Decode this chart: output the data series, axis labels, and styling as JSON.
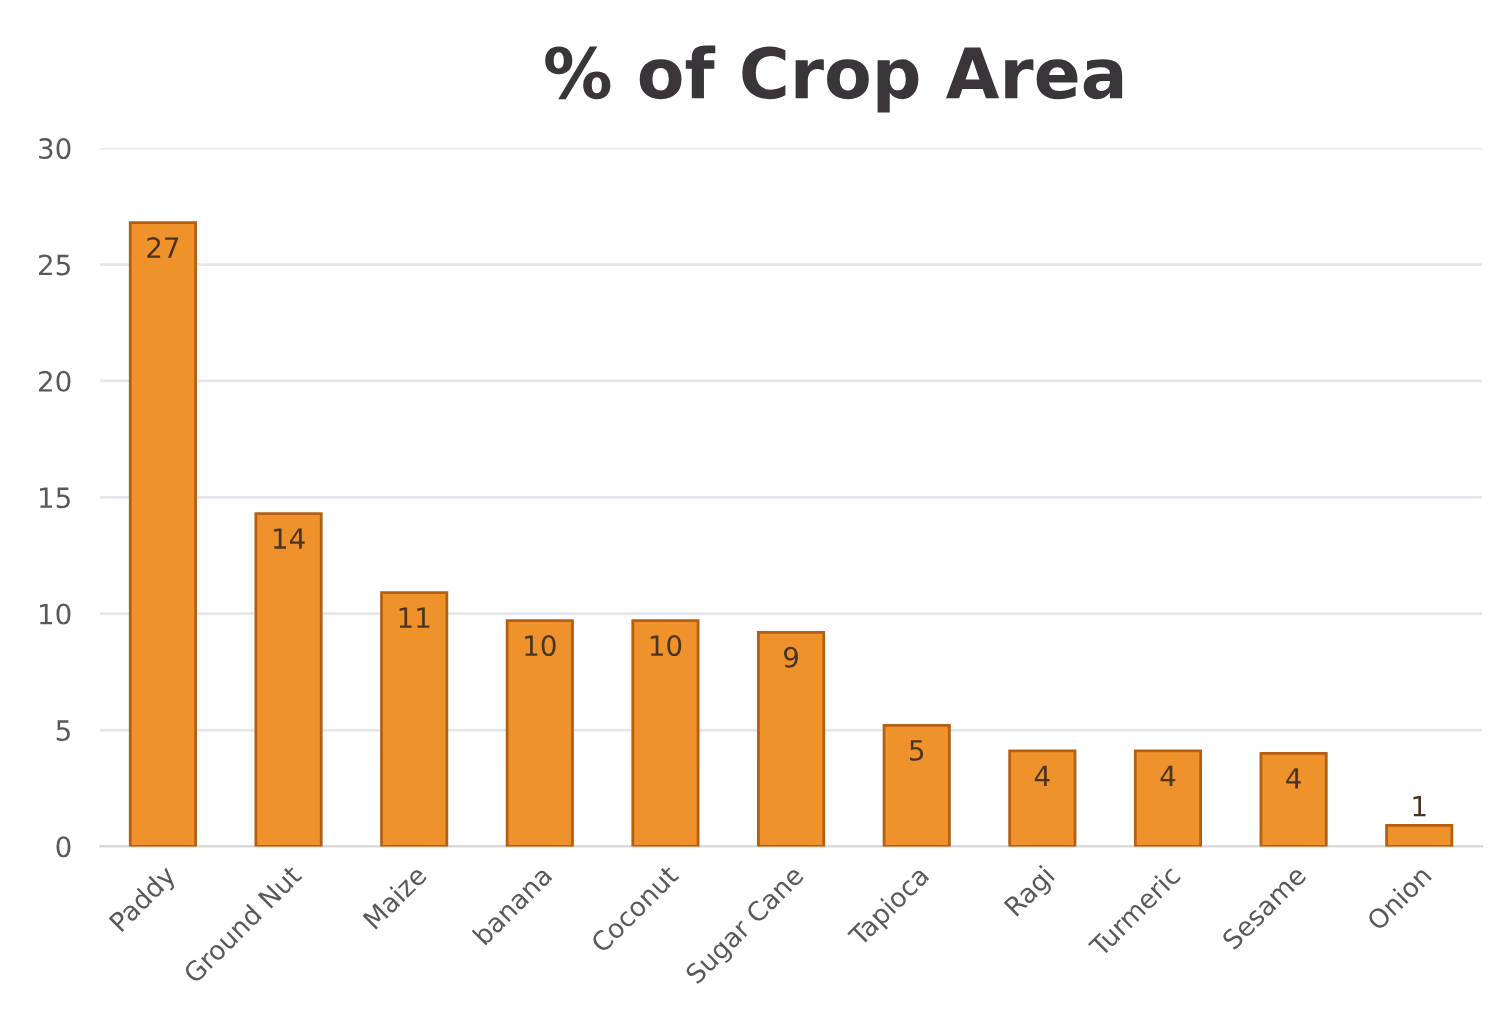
{
  "chart_data": {
    "type": "bar",
    "title": "% of Crop Area",
    "categories": [
      "Paddy",
      "Ground Nut",
      "Maize",
      "banana",
      "Coconut",
      "Sugar Cane",
      "Tapioca",
      "Ragi",
      "Turmeric",
      "Sesame",
      "Onion"
    ],
    "values": [
      26.8,
      14.3,
      10.9,
      9.7,
      9.7,
      9.2,
      5.2,
      4.1,
      4.1,
      4.0,
      0.9
    ],
    "value_labels": [
      "27",
      "14",
      "11",
      "10",
      "10",
      "9",
      "5",
      "4",
      "4",
      "4",
      "1"
    ],
    "color": "#f0922b",
    "ylim": [
      0,
      30
    ],
    "yticks": [
      0,
      5,
      10,
      15,
      20,
      25,
      30
    ],
    "grid": "y"
  }
}
